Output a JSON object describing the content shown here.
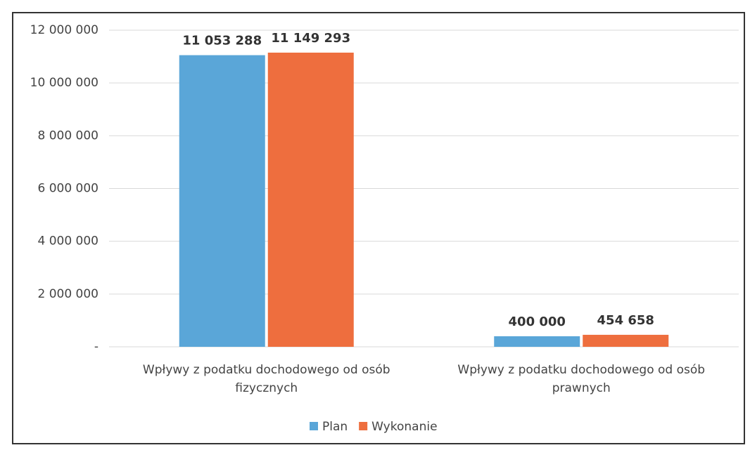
{
  "chart_data": {
    "type": "bar",
    "categories": [
      "Wpływy z podatku dochodowego od osób fizycznych",
      "Wpływy z podatku dochodowego od osób prawnych"
    ],
    "series": [
      {
        "name": "Plan",
        "color": "#5aa6d8",
        "values": [
          11053288,
          400000
        ],
        "value_labels": [
          "11 053 288",
          "400 000"
        ]
      },
      {
        "name": "Wykonanie",
        "color": "#ee6e3e",
        "values": [
          11149293,
          454658
        ],
        "value_labels": [
          "11 149 293",
          "454 658"
        ]
      }
    ],
    "ylim": [
      0,
      12000000
    ],
    "yticks": [
      {
        "value": 0,
        "label": "-"
      },
      {
        "value": 2000000,
        "label": "2 000 000"
      },
      {
        "value": 4000000,
        "label": "4 000 000"
      },
      {
        "value": 6000000,
        "label": "6 000 000"
      },
      {
        "value": 8000000,
        "label": "8 000 000"
      },
      {
        "value": 10000000,
        "label": "10 000 000"
      },
      {
        "value": 12000000,
        "label": "12 000 000"
      }
    ],
    "grid": true,
    "legend": "bottom"
  }
}
